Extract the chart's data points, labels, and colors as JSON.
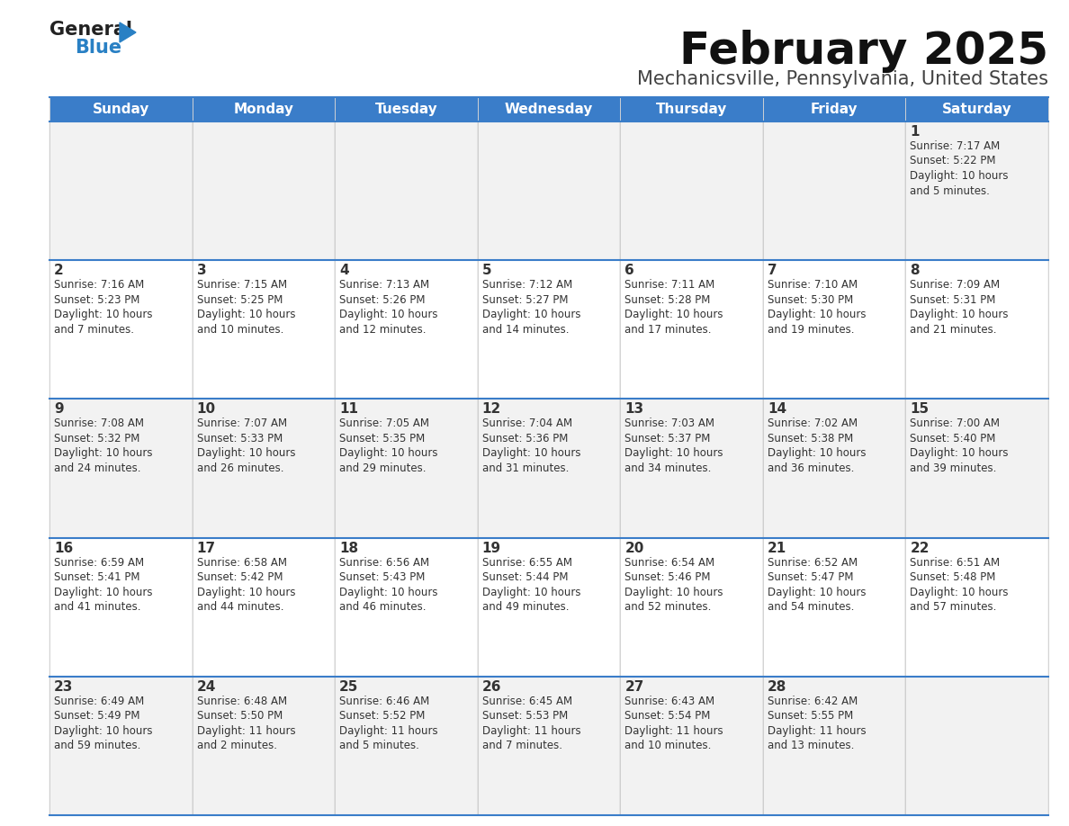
{
  "title": "February 2025",
  "subtitle": "Mechanicsville, Pennsylvania, United States",
  "header_bg": "#3A7DC9",
  "header_text": "#FFFFFF",
  "cell_bg_odd": "#F2F2F2",
  "cell_bg_even": "#FFFFFF",
  "cell_text": "#333333",
  "day_headers": [
    "Sunday",
    "Monday",
    "Tuesday",
    "Wednesday",
    "Thursday",
    "Friday",
    "Saturday"
  ],
  "logo_general_color": "#222222",
  "logo_blue_color": "#2980C4",
  "calendar_data": [
    [
      null,
      null,
      null,
      null,
      null,
      null,
      {
        "day": 1,
        "sunrise": "7:17 AM",
        "sunset": "5:22 PM",
        "daylight": "10 hours\nand 5 minutes."
      }
    ],
    [
      {
        "day": 2,
        "sunrise": "7:16 AM",
        "sunset": "5:23 PM",
        "daylight": "10 hours\nand 7 minutes."
      },
      {
        "day": 3,
        "sunrise": "7:15 AM",
        "sunset": "5:25 PM",
        "daylight": "10 hours\nand 10 minutes."
      },
      {
        "day": 4,
        "sunrise": "7:13 AM",
        "sunset": "5:26 PM",
        "daylight": "10 hours\nand 12 minutes."
      },
      {
        "day": 5,
        "sunrise": "7:12 AM",
        "sunset": "5:27 PM",
        "daylight": "10 hours\nand 14 minutes."
      },
      {
        "day": 6,
        "sunrise": "7:11 AM",
        "sunset": "5:28 PM",
        "daylight": "10 hours\nand 17 minutes."
      },
      {
        "day": 7,
        "sunrise": "7:10 AM",
        "sunset": "5:30 PM",
        "daylight": "10 hours\nand 19 minutes."
      },
      {
        "day": 8,
        "sunrise": "7:09 AM",
        "sunset": "5:31 PM",
        "daylight": "10 hours\nand 21 minutes."
      }
    ],
    [
      {
        "day": 9,
        "sunrise": "7:08 AM",
        "sunset": "5:32 PM",
        "daylight": "10 hours\nand 24 minutes."
      },
      {
        "day": 10,
        "sunrise": "7:07 AM",
        "sunset": "5:33 PM",
        "daylight": "10 hours\nand 26 minutes."
      },
      {
        "day": 11,
        "sunrise": "7:05 AM",
        "sunset": "5:35 PM",
        "daylight": "10 hours\nand 29 minutes."
      },
      {
        "day": 12,
        "sunrise": "7:04 AM",
        "sunset": "5:36 PM",
        "daylight": "10 hours\nand 31 minutes."
      },
      {
        "day": 13,
        "sunrise": "7:03 AM",
        "sunset": "5:37 PM",
        "daylight": "10 hours\nand 34 minutes."
      },
      {
        "day": 14,
        "sunrise": "7:02 AM",
        "sunset": "5:38 PM",
        "daylight": "10 hours\nand 36 minutes."
      },
      {
        "day": 15,
        "sunrise": "7:00 AM",
        "sunset": "5:40 PM",
        "daylight": "10 hours\nand 39 minutes."
      }
    ],
    [
      {
        "day": 16,
        "sunrise": "6:59 AM",
        "sunset": "5:41 PM",
        "daylight": "10 hours\nand 41 minutes."
      },
      {
        "day": 17,
        "sunrise": "6:58 AM",
        "sunset": "5:42 PM",
        "daylight": "10 hours\nand 44 minutes."
      },
      {
        "day": 18,
        "sunrise": "6:56 AM",
        "sunset": "5:43 PM",
        "daylight": "10 hours\nand 46 minutes."
      },
      {
        "day": 19,
        "sunrise": "6:55 AM",
        "sunset": "5:44 PM",
        "daylight": "10 hours\nand 49 minutes."
      },
      {
        "day": 20,
        "sunrise": "6:54 AM",
        "sunset": "5:46 PM",
        "daylight": "10 hours\nand 52 minutes."
      },
      {
        "day": 21,
        "sunrise": "6:52 AM",
        "sunset": "5:47 PM",
        "daylight": "10 hours\nand 54 minutes."
      },
      {
        "day": 22,
        "sunrise": "6:51 AM",
        "sunset": "5:48 PM",
        "daylight": "10 hours\nand 57 minutes."
      }
    ],
    [
      {
        "day": 23,
        "sunrise": "6:49 AM",
        "sunset": "5:49 PM",
        "daylight": "10 hours\nand 59 minutes."
      },
      {
        "day": 24,
        "sunrise": "6:48 AM",
        "sunset": "5:50 PM",
        "daylight": "11 hours\nand 2 minutes."
      },
      {
        "day": 25,
        "sunrise": "6:46 AM",
        "sunset": "5:52 PM",
        "daylight": "11 hours\nand 5 minutes."
      },
      {
        "day": 26,
        "sunrise": "6:45 AM",
        "sunset": "5:53 PM",
        "daylight": "11 hours\nand 7 minutes."
      },
      {
        "day": 27,
        "sunrise": "6:43 AM",
        "sunset": "5:54 PM",
        "daylight": "11 hours\nand 10 minutes."
      },
      {
        "day": 28,
        "sunrise": "6:42 AM",
        "sunset": "5:55 PM",
        "daylight": "11 hours\nand 13 minutes."
      },
      null
    ]
  ],
  "title_fontsize": 36,
  "subtitle_fontsize": 15,
  "header_fontsize": 11,
  "day_num_fontsize": 11,
  "cell_text_fontsize": 8.5
}
